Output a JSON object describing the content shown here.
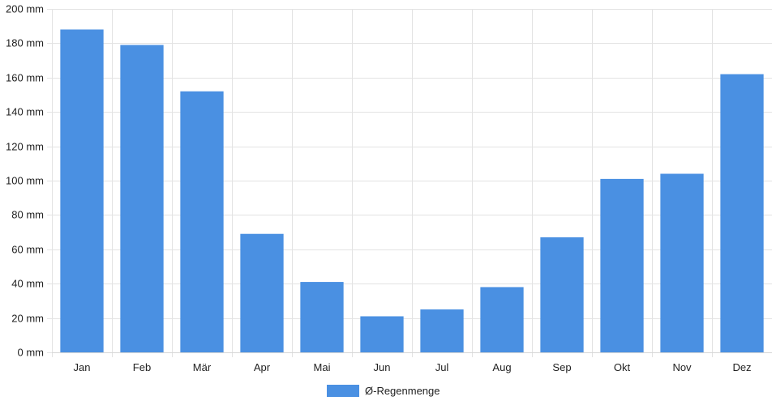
{
  "chart_data": {
    "type": "bar",
    "categories": [
      "Jan",
      "Feb",
      "Mär",
      "Apr",
      "Mai",
      "Jun",
      "Jul",
      "Aug",
      "Sep",
      "Okt",
      "Nov",
      "Dez"
    ],
    "series": [
      {
        "name": "Ø-Regenmenge",
        "values": [
          188,
          179,
          152,
          69,
          41,
          21,
          25,
          38,
          67,
          101,
          104,
          162
        ],
        "color": "#4a90e2"
      }
    ],
    "ylim": [
      0,
      200
    ],
    "y_ticks": [
      "0 mm",
      "20 mm",
      "40 mm",
      "60 mm",
      "80 mm",
      "100 mm",
      "120 mm",
      "140 mm",
      "160 mm",
      "180 mm",
      "200 mm"
    ],
    "y_tick_values": [
      0,
      20,
      40,
      60,
      80,
      100,
      120,
      140,
      160,
      180,
      200
    ],
    "grid": true,
    "legend": "bottom-center"
  }
}
